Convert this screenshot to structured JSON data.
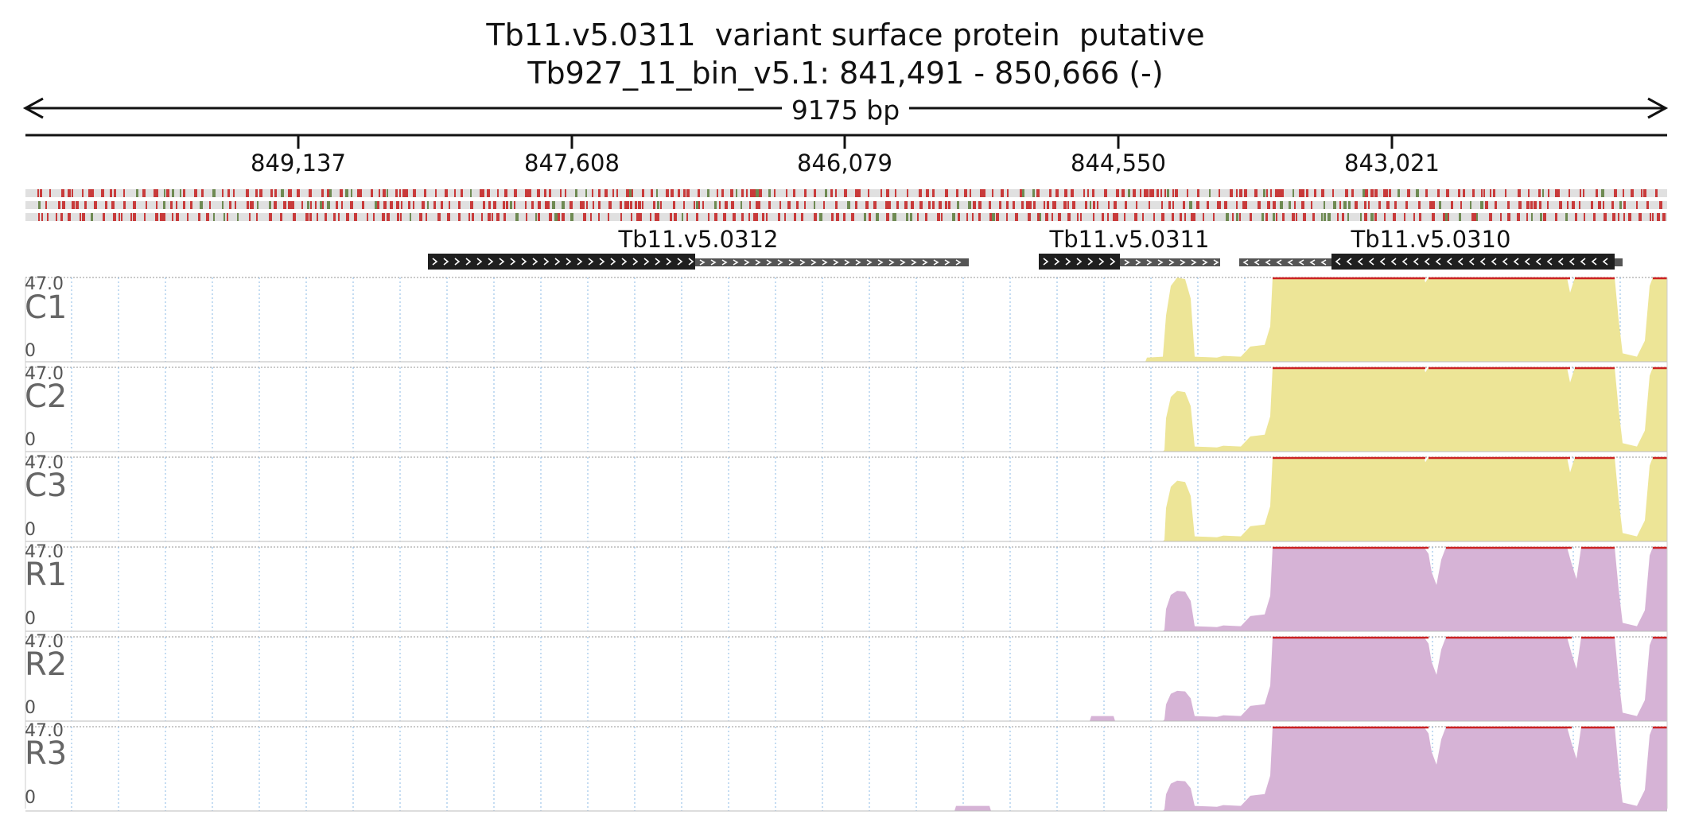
{
  "header": {
    "title": "Tb11.v5.0311  variant surface protein  putative",
    "location": "Tb927_11_bin_v5.1: 841,491 - 850,666 (-)",
    "span": "9175 bp"
  },
  "ruler": {
    "ticks": [
      "849,137",
      "847,608",
      "846,079",
      "844,550",
      "843,021"
    ]
  },
  "colors": {
    "c_fill": "#ede597",
    "r_fill": "#d6b3d6",
    "saturation": "#cc2222",
    "feature_dark": "#1f1f1f",
    "feature_grey": "#555555",
    "stop_red": "#c83a3a",
    "start_green": "#6e8a52",
    "frame_bg": "#e0e0e0"
  },
  "genes": [
    {
      "name": "Tb11.v5.0312",
      "strand": ">"
    },
    {
      "name": "Tb11.v5.0311",
      "strand": ">"
    },
    {
      "name": "Tb11.v5.0310",
      "strand": "<"
    }
  ],
  "tracks": [
    {
      "name": "C1",
      "ymax": "47.0",
      "ymin": "0",
      "group": "C"
    },
    {
      "name": "C2",
      "ymax": "47.0",
      "ymin": "0",
      "group": "C"
    },
    {
      "name": "C3",
      "ymax": "47.0",
      "ymin": "0",
      "group": "C"
    },
    {
      "name": "R1",
      "ymax": "47.0",
      "ymin": "0",
      "group": "R"
    },
    {
      "name": "R2",
      "ymax": "47.0",
      "ymin": "0",
      "group": "R"
    },
    {
      "name": "R3",
      "ymax": "47.0",
      "ymin": "0",
      "group": "R"
    }
  ]
}
